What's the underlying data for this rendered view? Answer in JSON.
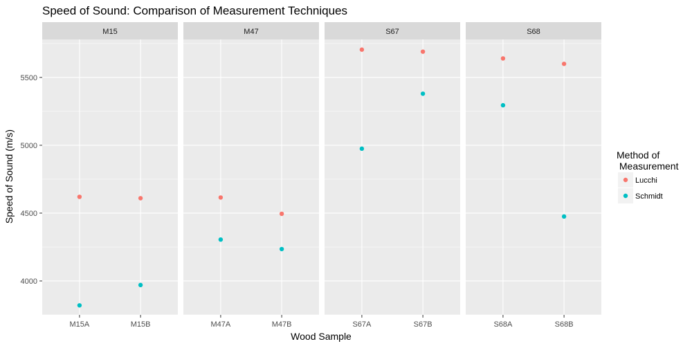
{
  "chart_data": {
    "type": "scatter",
    "title": "Speed of Sound: Comparison of Measurement Techniques",
    "xlabel": "Wood Sample",
    "ylabel": "Speed of Sound (m/s)",
    "ylim": [
      3750,
      5780
    ],
    "yticks": [
      4000,
      4500,
      5000,
      5500
    ],
    "grid": true,
    "legend": {
      "title_lines": [
        "Method of",
        " Measurement"
      ],
      "placement": "right"
    },
    "facets": [
      {
        "name": "M15",
        "categories": [
          "M15A",
          "M15B"
        ]
      },
      {
        "name": "M47",
        "categories": [
          "M47A",
          "M47B"
        ]
      },
      {
        "name": "S67",
        "categories": [
          "S67A",
          "S67B"
        ]
      },
      {
        "name": "S68",
        "categories": [
          "S68A",
          "S68B"
        ]
      }
    ],
    "series": [
      {
        "name": "Lucchi",
        "color": "#F8766D",
        "values": {
          "M15A": 4620,
          "M15B": 4610,
          "M47A": 4615,
          "M47B": 4495,
          "S67A": 5705,
          "S67B": 5690,
          "S68A": 5640,
          "S68B": 5600
        }
      },
      {
        "name": "Schmidt",
        "color": "#00BFC4",
        "values": {
          "M15A": 3820,
          "M15B": 3970,
          "M47A": 4305,
          "M47B": 4235,
          "S67A": 4975,
          "S67B": 5380,
          "S68A": 5295,
          "S68B": 4475
        }
      }
    ]
  }
}
